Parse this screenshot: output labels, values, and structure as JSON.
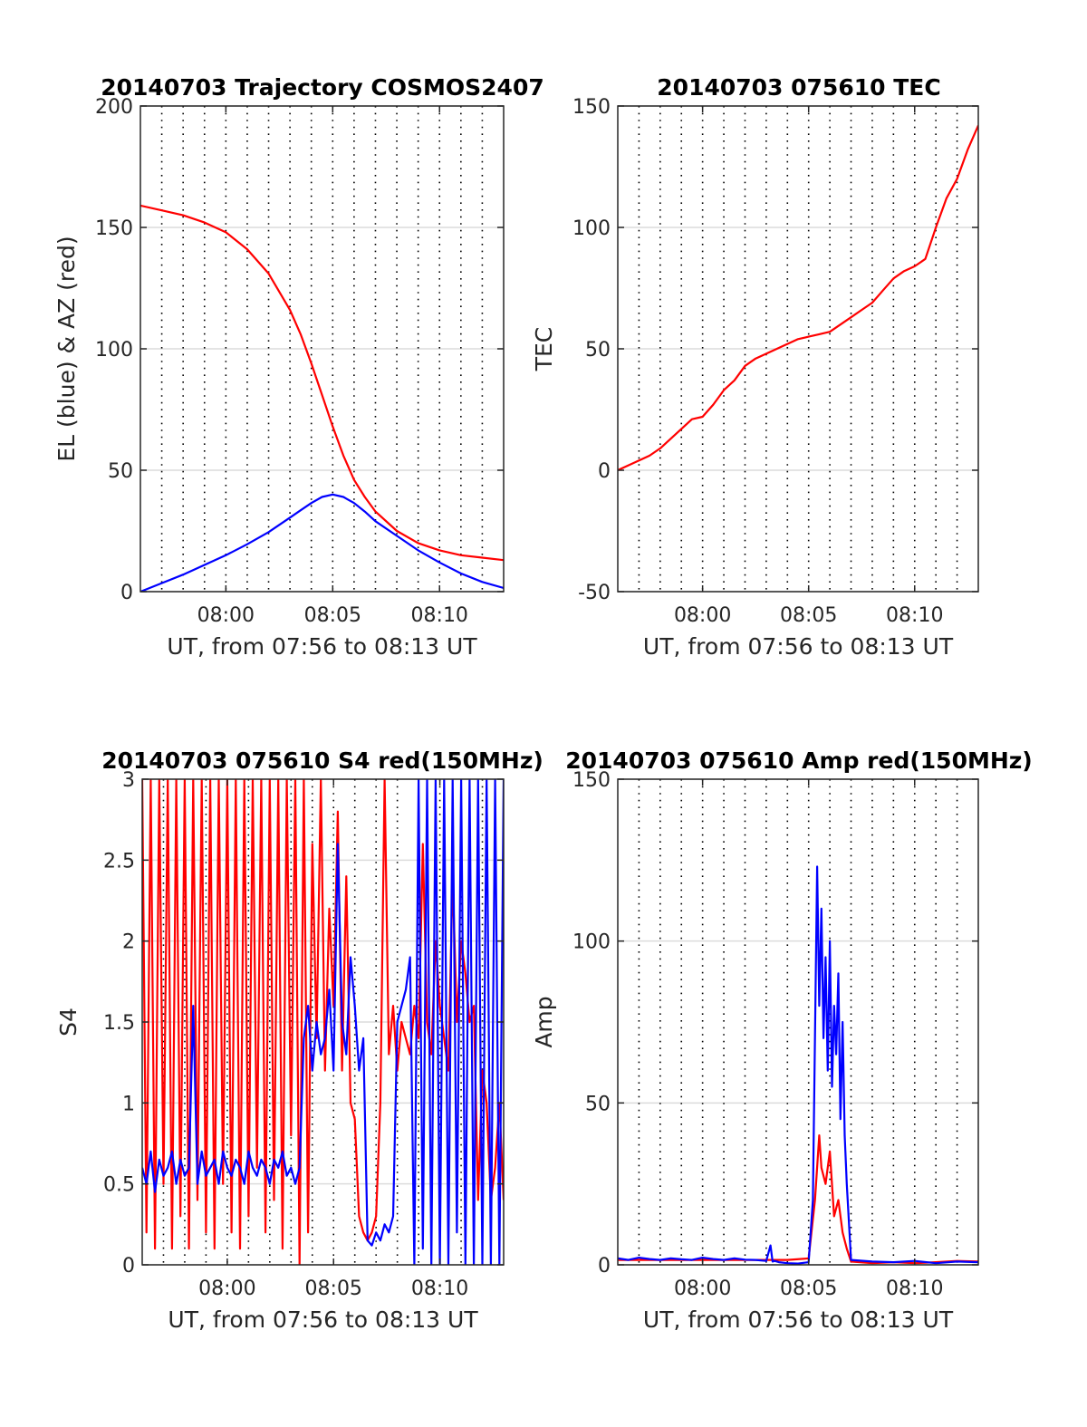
{
  "colors": {
    "red": "#ff0000",
    "blue": "#0000ff",
    "grid": "#dcdcdc",
    "axis": "#262626"
  },
  "chart_data": [
    {
      "type": "line",
      "title": "20140703 Trajectory COSMOS2407",
      "xlabel": "UT, from 07:56 to 08:13 UT",
      "ylabel": "EL (blue) & AZ (red)",
      "x_unit": "minutes after 07:56 UT",
      "xlim": [
        0,
        17
      ],
      "ylim": [
        0,
        200
      ],
      "x_ticks": [
        {
          "x": 4,
          "label": "08:00"
        },
        {
          "x": 9,
          "label": "08:05"
        },
        {
          "x": 14,
          "label": "08:10"
        }
      ],
      "y_ticks": [
        {
          "y": 0,
          "label": "0"
        },
        {
          "y": 50,
          "label": "50"
        },
        {
          "y": 100,
          "label": "100"
        },
        {
          "y": 150,
          "label": "150"
        },
        {
          "y": 200,
          "label": "200"
        }
      ],
      "series": [
        {
          "color": "red",
          "x": [
            0,
            1,
            2,
            3,
            4,
            5,
            6,
            7,
            7.5,
            8,
            8.5,
            9,
            9.5,
            10,
            10.5,
            11,
            12,
            13,
            14,
            15,
            16,
            17
          ],
          "y": [
            159,
            157,
            155,
            152,
            148,
            141,
            131,
            116,
            106,
            94,
            81,
            68,
            56,
            46,
            39,
            33,
            25,
            20,
            17,
            15,
            14,
            13
          ]
        },
        {
          "color": "blue",
          "x": [
            0,
            1,
            2,
            3,
            4,
            5,
            6,
            7,
            7.5,
            8,
            8.5,
            9,
            9.5,
            10,
            10.5,
            11,
            12,
            13,
            14,
            15,
            16,
            17
          ],
          "y": [
            0,
            3.5,
            7,
            11,
            15,
            19.5,
            24.5,
            30.5,
            33.5,
            36.5,
            39,
            40,
            39,
            36.5,
            33,
            29,
            23,
            17,
            12,
            7.5,
            4,
            1.5
          ]
        }
      ]
    },
    {
      "type": "line",
      "title": "20140703 075610 TEC",
      "xlabel": "UT, from 07:56 to 08:13 UT",
      "ylabel": "TEC",
      "x_unit": "minutes after 07:56 UT",
      "xlim": [
        0,
        17
      ],
      "ylim": [
        -50,
        150
      ],
      "x_ticks": [
        {
          "x": 4,
          "label": "08:00"
        },
        {
          "x": 9,
          "label": "08:05"
        },
        {
          "x": 14,
          "label": "08:10"
        }
      ],
      "y_ticks": [
        {
          "y": -50,
          "label": "-50"
        },
        {
          "y": 0,
          "label": "0"
        },
        {
          "y": 50,
          "label": "50"
        },
        {
          "y": 100,
          "label": "100"
        },
        {
          "y": 150,
          "label": "150"
        }
      ],
      "series": [
        {
          "color": "red",
          "x": [
            0,
            0.5,
            1,
            1.5,
            2,
            2.5,
            3,
            3.5,
            4,
            4.5,
            5,
            5.5,
            6,
            6.5,
            7,
            7.5,
            8,
            8.5,
            9,
            9.5,
            10,
            10.5,
            11,
            11.5,
            12,
            12.5,
            13,
            13.5,
            14,
            14.5,
            15,
            15.5,
            16,
            16.5,
            17
          ],
          "y": [
            0,
            2,
            4,
            6,
            9,
            13,
            17,
            21,
            22,
            27,
            33,
            37,
            43,
            46,
            48,
            50,
            52,
            54,
            55,
            56,
            57,
            60,
            63,
            66,
            69,
            74,
            79,
            82,
            84,
            87,
            100,
            112,
            120,
            132,
            142
          ]
        }
      ]
    },
    {
      "type": "line",
      "title": "20140703 075610 S4 red(150MHz)",
      "xlabel": "UT, from 07:56 to 08:13 UT",
      "ylabel": "S4",
      "x_unit": "minutes after 07:56 UT",
      "xlim": [
        0,
        17
      ],
      "ylim": [
        0,
        3
      ],
      "x_ticks": [
        {
          "x": 4,
          "label": "08:00"
        },
        {
          "x": 9,
          "label": "08:05"
        },
        {
          "x": 14,
          "label": "08:10"
        }
      ],
      "y_ticks": [
        {
          "y": 0,
          "label": "0"
        },
        {
          "y": 0.5,
          "label": "0.5"
        },
        {
          "y": 1,
          "label": "1"
        },
        {
          "y": 1.5,
          "label": "1.5"
        },
        {
          "y": 2,
          "label": "2"
        },
        {
          "y": 2.5,
          "label": "2.5"
        },
        {
          "y": 3,
          "label": "3"
        }
      ],
      "series": [
        {
          "color": "red",
          "x": [
            0,
            0.2,
            0.4,
            0.6,
            0.8,
            1.0,
            1.2,
            1.4,
            1.6,
            1.8,
            2.0,
            2.2,
            2.4,
            2.6,
            2.8,
            3.0,
            3.2,
            3.4,
            3.6,
            3.8,
            4.0,
            4.2,
            4.4,
            4.6,
            4.8,
            5.0,
            5.2,
            5.4,
            5.6,
            5.8,
            6.0,
            6.2,
            6.4,
            6.6,
            6.8,
            7.0,
            7.2,
            7.4,
            7.6,
            7.8,
            8.0,
            8.2,
            8.4,
            8.6,
            8.8,
            9.0,
            9.2,
            9.4,
            9.6,
            9.8,
            10.0,
            10.2,
            10.4,
            10.6,
            10.8,
            11.0,
            11.2,
            11.4,
            11.6,
            11.8,
            12.0,
            12.2,
            12.4,
            12.6,
            12.8,
            13.0,
            13.2,
            13.4,
            13.6,
            13.8,
            14.0,
            14.2,
            14.4,
            14.6,
            14.8,
            15.0,
            15.2,
            15.4,
            15.6,
            15.8,
            16.0,
            16.2,
            16.4,
            16.6,
            16.8,
            17.0
          ],
          "y": [
            3,
            0.2,
            3,
            0.1,
            3,
            0.5,
            3,
            0.1,
            3,
            0.3,
            3,
            0.1,
            3,
            0.4,
            3,
            0.2,
            3,
            0.1,
            3,
            0.5,
            3,
            0.2,
            3,
            0.1,
            3,
            0.3,
            3,
            0.6,
            3,
            0.2,
            3,
            0.4,
            3,
            0.1,
            3,
            0.8,
            3,
            0,
            3,
            0.2,
            2.6,
            1.4,
            3,
            1.2,
            2.2,
            1.6,
            2.8,
            1.2,
            2.4,
            1.0,
            0.9,
            0.3,
            0.2,
            0.15,
            0.2,
            0.3,
            1.0,
            3,
            1.3,
            1.6,
            1.2,
            1.5,
            1.4,
            1.3,
            1.6,
            1.4,
            2.6,
            1.5,
            1.3,
            2.0,
            1.6,
            1.4,
            1.2,
            2.4,
            1.5,
            2.0,
            1.8,
            1.5,
            1.6,
            0.4,
            1.2,
            1.0,
            0.4,
            0.6,
            1.0,
            0.4
          ]
        },
        {
          "color": "blue",
          "x": [
            0,
            0.2,
            0.4,
            0.6,
            0.8,
            1.0,
            1.2,
            1.4,
            1.6,
            1.8,
            2.0,
            2.2,
            2.4,
            2.6,
            2.8,
            3.0,
            3.2,
            3.4,
            3.6,
            3.8,
            4.0,
            4.2,
            4.4,
            4.6,
            4.8,
            5.0,
            5.2,
            5.4,
            5.6,
            5.8,
            6.0,
            6.2,
            6.4,
            6.6,
            6.8,
            7.0,
            7.2,
            7.4,
            7.6,
            7.8,
            8.0,
            8.2,
            8.4,
            8.6,
            8.8,
            9.0,
            9.2,
            9.4,
            9.6,
            9.8,
            10.0,
            10.2,
            10.4,
            10.6,
            10.8,
            11.0,
            11.2,
            11.4,
            11.6,
            11.8,
            12.0,
            12.2,
            12.4,
            12.6,
            12.8,
            13.0,
            13.2,
            13.4,
            13.6,
            13.8,
            14.0,
            14.2,
            14.4,
            14.6,
            14.8,
            15.0,
            15.2,
            15.4,
            15.6,
            15.8,
            16.0,
            16.2,
            16.4,
            16.6,
            16.8,
            17.0
          ],
          "y": [
            0.6,
            0.5,
            0.7,
            0.45,
            0.65,
            0.55,
            0.6,
            0.7,
            0.5,
            0.65,
            0.55,
            0.6,
            1.6,
            0.5,
            0.7,
            0.55,
            0.6,
            0.65,
            0.5,
            0.7,
            0.6,
            0.55,
            0.65,
            0.6,
            0.5,
            0.7,
            0.6,
            0.55,
            0.65,
            0.6,
            0.5,
            0.65,
            0.6,
            0.7,
            0.55,
            0.6,
            0.5,
            0.6,
            1.4,
            1.6,
            1.2,
            1.5,
            1.3,
            1.4,
            1.7,
            1.2,
            2.6,
            1.5,
            1.3,
            1.9,
            1.6,
            1.2,
            1.4,
            0.15,
            0.12,
            0.2,
            0.15,
            0.25,
            0.2,
            0.3,
            1.5,
            1.6,
            1.7,
            1.9,
            0,
            3,
            0.1,
            3,
            0,
            3,
            0,
            3,
            0,
            3,
            0.2,
            3,
            0,
            3,
            0,
            3,
            0,
            3,
            0,
            3,
            0,
            3
          ]
        }
      ]
    },
    {
      "type": "line",
      "title": "20140703 075610 Amp red(150MHz)",
      "xlabel": "UT, from 07:56 to 08:13 UT",
      "ylabel": "Amp",
      "x_unit": "minutes after 07:56 UT",
      "xlim": [
        0,
        17
      ],
      "ylim": [
        0,
        150
      ],
      "x_ticks": [
        {
          "x": 4,
          "label": "08:00"
        },
        {
          "x": 9,
          "label": "08:05"
        },
        {
          "x": 14,
          "label": "08:10"
        }
      ],
      "y_ticks": [
        {
          "y": 0,
          "label": "0"
        },
        {
          "y": 50,
          "label": "50"
        },
        {
          "y": 100,
          "label": "100"
        },
        {
          "y": 150,
          "label": "150"
        }
      ],
      "series": [
        {
          "color": "red",
          "x": [
            0,
            2,
            4,
            6,
            8,
            9.0,
            9.3,
            9.5,
            9.6,
            9.8,
            10.0,
            10.2,
            10.4,
            10.6,
            10.8,
            11,
            12,
            13,
            14,
            15,
            16,
            17
          ],
          "y": [
            1.5,
            1.5,
            1.5,
            1.5,
            1.5,
            2,
            20,
            40,
            30,
            25,
            35,
            15,
            20,
            10,
            5,
            1,
            0.5,
            0.8,
            0.5,
            0.8,
            1.2,
            1.0
          ]
        },
        {
          "color": "blue",
          "x": [
            0,
            0.5,
            1,
            1.5,
            2,
            2.5,
            3,
            3.5,
            4,
            4.5,
            5,
            5.5,
            6,
            6.5,
            7,
            7.2,
            7.3,
            7.4,
            7.6,
            8,
            8.5,
            9.0,
            9.2,
            9.4,
            9.5,
            9.6,
            9.7,
            9.8,
            9.9,
            10.0,
            10.1,
            10.2,
            10.3,
            10.4,
            10.5,
            10.6,
            10.7,
            10.8,
            11,
            12,
            13,
            14,
            15,
            16,
            17
          ],
          "y": [
            2,
            1.5,
            2.2,
            1.8,
            1.5,
            2.0,
            1.7,
            1.5,
            2.2,
            1.8,
            1.5,
            2.0,
            1.6,
            1.5,
            1.2,
            6,
            1.0,
            1.2,
            0.8,
            0.5,
            0.4,
            0.8,
            20,
            123,
            80,
            110,
            70,
            95,
            60,
            100,
            55,
            80,
            65,
            90,
            45,
            75,
            40,
            25,
            1.5,
            1.0,
            0.8,
            1.2,
            0.5,
            1.0,
            0.8
          ]
        }
      ]
    }
  ]
}
